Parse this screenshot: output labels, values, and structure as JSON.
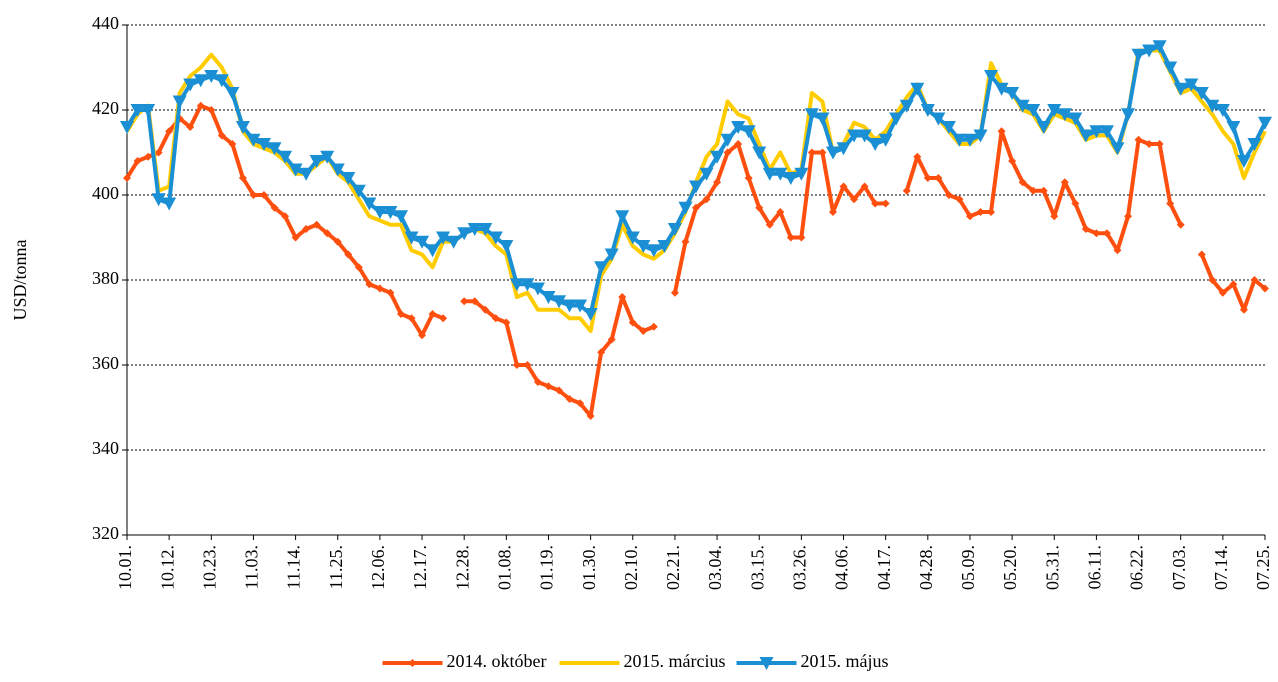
{
  "chart_data": {
    "type": "line",
    "y_label": "USD/tonna",
    "categories": [
      "10.01.",
      null,
      null,
      null,
      "10.12.",
      null,
      null,
      null,
      "10.23.",
      null,
      null,
      null,
      "11.03.",
      null,
      null,
      null,
      "11.14.",
      null,
      null,
      null,
      "11.25.",
      null,
      null,
      null,
      "12.06.",
      null,
      null,
      null,
      "12.17.",
      null,
      null,
      null,
      "12.28.",
      null,
      null,
      null,
      "01.08.",
      null,
      null,
      null,
      "01.19.",
      null,
      null,
      null,
      "01.30.",
      null,
      null,
      null,
      "02.10.",
      null,
      null,
      null,
      "02.21.",
      null,
      null,
      null,
      "03.04.",
      null,
      null,
      null,
      "03.15.",
      null,
      null,
      null,
      "03.26.",
      null,
      null,
      null,
      "04.06.",
      null,
      null,
      null,
      "04.17.",
      null,
      null,
      null,
      "04.28.",
      null,
      null,
      null,
      "05.09.",
      null,
      null,
      null,
      "05.20.",
      null,
      null,
      null,
      "05.31.",
      null,
      null,
      null,
      "06.11.",
      null,
      null,
      null,
      "06.22.",
      null,
      null,
      null,
      "07.03.",
      null,
      null,
      null,
      "07.14.",
      null,
      null,
      null,
      "07.25."
    ],
    "series": [
      {
        "name": "2014. október",
        "color": "#ff4f0f",
        "marker": "diamond",
        "values": [
          404,
          408,
          409,
          410,
          415,
          418,
          416,
          421,
          420,
          414,
          412,
          404,
          400,
          400,
          397,
          395,
          390,
          392,
          393,
          391,
          389,
          386,
          383,
          379,
          378,
          377,
          372,
          371,
          367,
          372,
          371,
          null,
          375,
          375,
          373,
          371,
          370,
          360,
          360,
          356,
          355,
          354,
          352,
          351,
          348,
          363,
          366,
          376,
          370,
          368,
          369,
          null,
          377,
          389,
          397,
          399,
          403,
          410,
          412,
          404,
          397,
          393,
          396,
          390,
          390,
          410,
          410,
          396,
          402,
          399,
          402,
          398,
          398,
          null,
          401,
          409,
          404,
          404,
          400,
          399,
          395,
          396,
          396,
          415,
          408,
          403,
          401,
          401,
          395,
          403,
          398,
          392,
          391,
          391,
          387,
          395,
          413,
          412,
          412,
          398,
          393,
          null,
          386,
          380,
          377,
          379,
          373,
          380,
          378
        ]
      },
      {
        "name": "2015. március",
        "color": "#ffcc00",
        "marker": "none",
        "values": [
          415,
          419,
          421,
          401,
          402,
          424,
          428,
          430,
          433,
          430,
          425,
          415,
          412,
          411,
          410,
          408,
          405,
          405,
          407,
          409,
          405,
          403,
          399,
          395,
          394,
          393,
          393,
          387,
          386,
          383,
          389,
          389,
          391,
          392,
          391,
          388,
          386,
          376,
          377,
          373,
          373,
          373,
          371,
          371,
          368,
          381,
          385,
          393,
          388,
          386,
          385,
          387,
          391,
          396,
          403,
          409,
          412,
          422,
          419,
          418,
          412,
          406,
          410,
          405,
          406,
          424,
          422,
          410,
          412,
          417,
          416,
          413,
          415,
          419,
          423,
          426,
          420,
          418,
          415,
          412,
          412,
          414,
          431,
          426,
          424,
          420,
          419,
          415,
          419,
          418,
          417,
          413,
          414,
          414,
          410,
          419,
          434,
          434,
          434,
          429,
          424,
          425,
          422,
          419,
          415,
          412,
          404,
          410,
          415
        ]
      },
      {
        "name": "2015. május",
        "color": "#1a8fd4",
        "marker": "triangle-down",
        "values": [
          416,
          420,
          420,
          399,
          398,
          422,
          426,
          427,
          428,
          427,
          424,
          416,
          413,
          412,
          411,
          409,
          406,
          405,
          408,
          409,
          406,
          404,
          401,
          398,
          396,
          396,
          395,
          390,
          389,
          387,
          390,
          389,
          391,
          392,
          392,
          390,
          388,
          379,
          379,
          378,
          376,
          375,
          374,
          374,
          372,
          383,
          386,
          395,
          390,
          388,
          387,
          388,
          392,
          397,
          402,
          405,
          409,
          413,
          416,
          415,
          410,
          405,
          405,
          404,
          405,
          419,
          418,
          410,
          411,
          414,
          414,
          412,
          413,
          418,
          421,
          425,
          420,
          418,
          416,
          413,
          413,
          414,
          428,
          425,
          424,
          421,
          420,
          416,
          420,
          419,
          418,
          414,
          415,
          415,
          411,
          419,
          433,
          434,
          435,
          430,
          425,
          426,
          424,
          421,
          420,
          416,
          408,
          412,
          417
        ]
      }
    ],
    "ylim": [
      320,
      440
    ],
    "yticks": [
      320,
      340,
      360,
      380,
      400,
      420,
      440
    ],
    "grid": true,
    "legend": "bottom"
  }
}
